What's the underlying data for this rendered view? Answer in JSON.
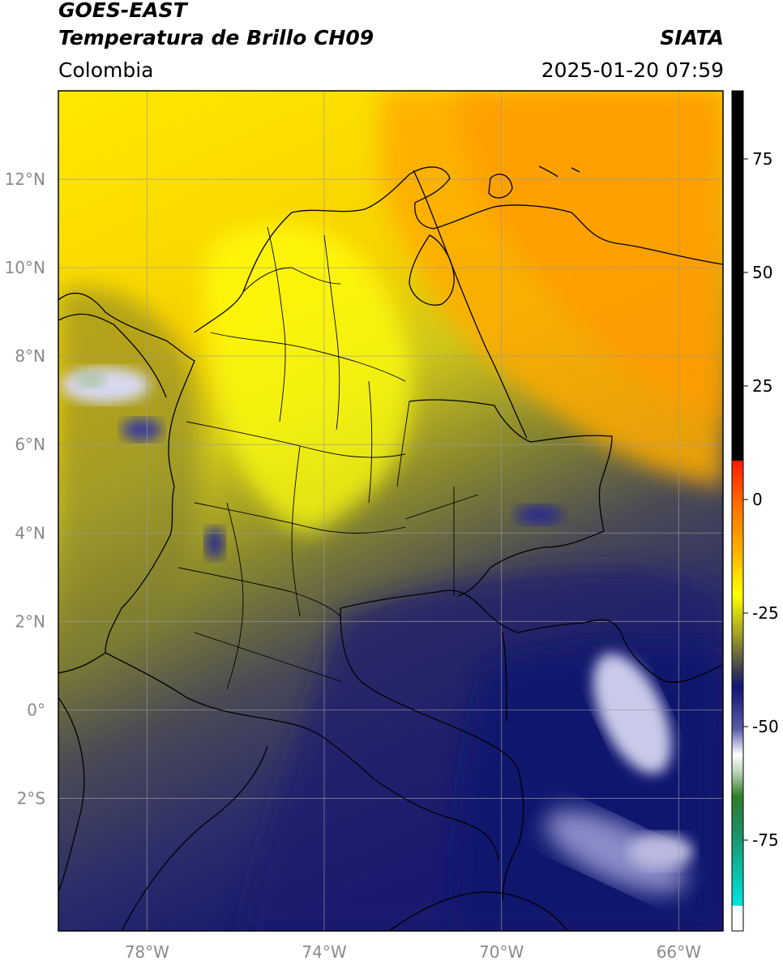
{
  "header": {
    "satellite": "GOES-EAST",
    "product": "Temperatura de Brillo CH09",
    "agency": "SIATA",
    "region": "Colombia",
    "datetime": "2025-01-20 07:59"
  },
  "map": {
    "lat_labels": [
      "12°N",
      "10°N",
      "8°N",
      "6°N",
      "4°N",
      "2°N",
      "0°",
      "2°S"
    ],
    "lon_labels": [
      "78°W",
      "74°W",
      "70°W",
      "66°W"
    ],
    "extent": {
      "lon_min": -80,
      "lon_max": -65,
      "lat_min": -5,
      "lat_max": 14
    },
    "gridlines": true
  },
  "colorbar": {
    "ticks": [
      "75",
      "50",
      "25",
      "0",
      "-25",
      "-50",
      "-75"
    ],
    "tick_values": [
      75,
      50,
      25,
      0,
      -25,
      -50,
      -75
    ],
    "range": [
      -95,
      90
    ],
    "colors": {
      "black": "#000000",
      "red": "#ff2000",
      "orange": "#ff9a00",
      "yellow": "#ffff00",
      "olive": "#8a8a2a",
      "navy": "#12136e",
      "white": "#ffffff",
      "green": "#2f7d2a",
      "cyan": "#00d8d0"
    }
  }
}
